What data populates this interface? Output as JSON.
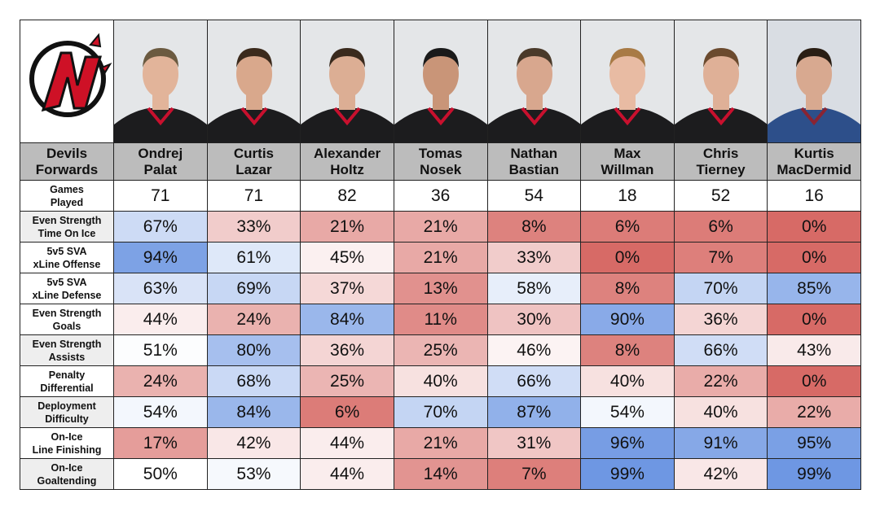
{
  "team_label": "Devils Forwards",
  "team_label_lines": [
    "Devils",
    "Forwards"
  ],
  "logo_text": "NJ",
  "players": [
    {
      "first": "Ondrej",
      "last": "Palat",
      "jersey": "devils"
    },
    {
      "first": "Curtis",
      "last": "Lazar",
      "jersey": "devils"
    },
    {
      "first": "Alexander",
      "last": "Holtz",
      "jersey": "devils"
    },
    {
      "first": "Tomas",
      "last": "Nosek",
      "jersey": "devils"
    },
    {
      "first": "Nathan",
      "last": "Bastian",
      "jersey": "devils"
    },
    {
      "first": "Max",
      "last": "Willman",
      "jersey": "devils"
    },
    {
      "first": "Chris",
      "last": "Tierney",
      "jersey": "devils"
    },
    {
      "first": "Kurtis",
      "last": "MacDermid",
      "jersey": "avalanche"
    }
  ],
  "games_played": {
    "label_lines": [
      "Games",
      "Played"
    ],
    "values": [
      "71",
      "71",
      "82",
      "36",
      "54",
      "18",
      "52",
      "16"
    ]
  },
  "metrics": [
    {
      "label_lines": [
        "Even Strength",
        "Time On Ice"
      ],
      "values": [
        67,
        33,
        21,
        21,
        8,
        6,
        6,
        0
      ]
    },
    {
      "label_lines": [
        "5v5 SVA",
        "xLine Offense"
      ],
      "values": [
        94,
        61,
        45,
        21,
        33,
        0,
        7,
        0
      ]
    },
    {
      "label_lines": [
        "5v5 SVA",
        "xLine Defense"
      ],
      "values": [
        63,
        69,
        37,
        13,
        58,
        8,
        70,
        85
      ]
    },
    {
      "label_lines": [
        "Even Strength",
        "Goals"
      ],
      "values": [
        44,
        24,
        84,
        11,
        30,
        90,
        36,
        0
      ]
    },
    {
      "label_lines": [
        "Even Strength",
        "Assists"
      ],
      "values": [
        51,
        80,
        36,
        25,
        46,
        8,
        66,
        43
      ]
    },
    {
      "label_lines": [
        "Penalty",
        "Differential"
      ],
      "values": [
        24,
        68,
        25,
        40,
        66,
        40,
        22,
        0
      ]
    },
    {
      "label_lines": [
        "Deployment",
        "Difficulty"
      ],
      "values": [
        54,
        84,
        6,
        70,
        87,
        54,
        40,
        22
      ]
    },
    {
      "label_lines": [
        "On-Ice",
        "Line Finishing"
      ],
      "values": [
        17,
        42,
        44,
        21,
        31,
        96,
        91,
        95
      ]
    },
    {
      "label_lines": [
        "On-Ice",
        "Goaltending"
      ],
      "values": [
        50,
        53,
        44,
        14,
        7,
        99,
        42,
        99
      ]
    }
  ],
  "colors": {
    "low": "#d76a66",
    "mid": "#ffffff",
    "high": "#6b95e2",
    "header_bg": "#bcbcbc",
    "devils_red": "#ce1126"
  }
}
